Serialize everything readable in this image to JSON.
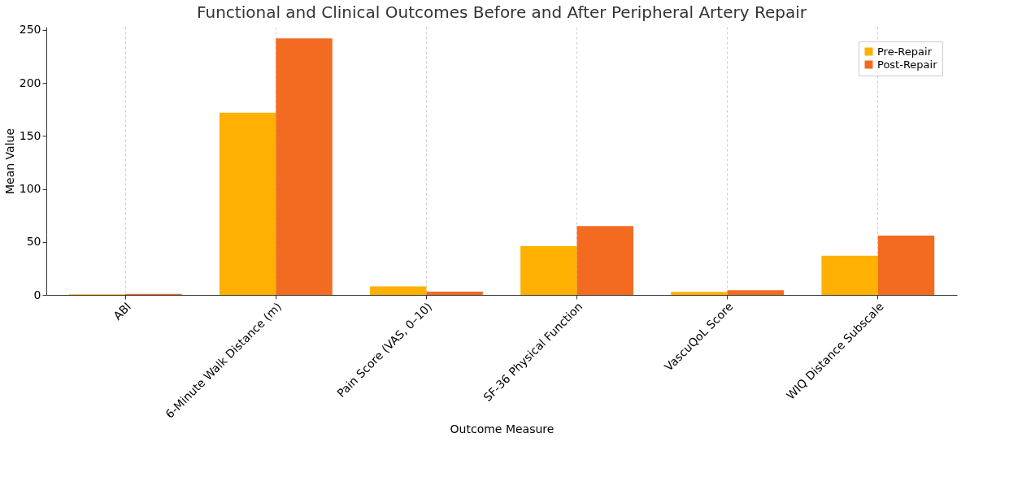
{
  "chart_data": {
    "type": "bar",
    "title": "Functional and Clinical Outcomes Before and After Peripheral Artery Repair",
    "xlabel": "Outcome Measure",
    "ylabel": "Mean Value",
    "categories": [
      "ABI",
      "6-Minute Walk Distance (m)",
      "Pain Score (VAS, 0–10)",
      "SF-36 Physical Function",
      "VascuQoL Score",
      "WIQ Distance Subscale"
    ],
    "series": [
      {
        "name": "Pre-Repair",
        "color": "#ffb000",
        "values": [
          0.6,
          172,
          8,
          46,
          2.8,
          37
        ]
      },
      {
        "name": "Post-Repair",
        "color": "#f26b21",
        "values": [
          0.9,
          242,
          3,
          65,
          4.5,
          56
        ]
      }
    ],
    "ylim": [
      0,
      253
    ],
    "yticks": [
      0,
      50,
      100,
      150,
      200,
      250
    ],
    "grid": "x",
    "legend": "top right"
  }
}
